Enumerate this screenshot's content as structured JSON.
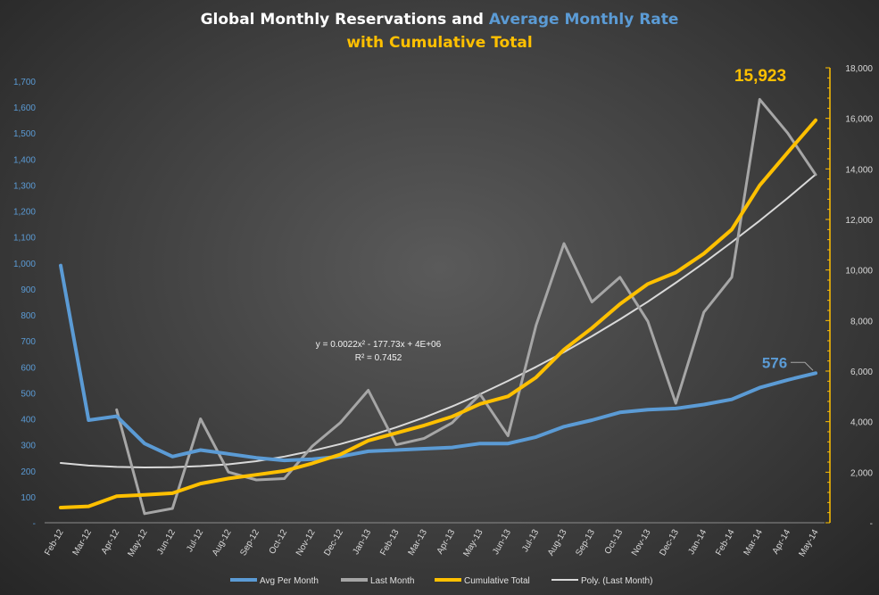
{
  "chart_data": {
    "type": "line",
    "title": {
      "part1": "Global Monthly Reservations and ",
      "part2": "Average Monthly Rate",
      "line2": "with Cumulative Total"
    },
    "categories": [
      "Feb-12",
      "Mar-12",
      "Apr-12",
      "May-12",
      "Jun-12",
      "Jul-12",
      "Aug-12",
      "Sep-12",
      "Oct-12",
      "Nov-12",
      "Dec-12",
      "Jan-13",
      "Feb-13",
      "Mar-13",
      "Apr-13",
      "May-13",
      "Jun-13",
      "Jul-13",
      "Aug-13",
      "Sep-13",
      "Oct-13",
      "Nov-13",
      "Dec-13",
      "Jan-14",
      "Feb-14",
      "Mar-14",
      "Apr-14",
      "May-14"
    ],
    "left_axis": {
      "min": 0,
      "max": 1700,
      "step": 100,
      "min_label": "-"
    },
    "right_axis": {
      "min": 0,
      "max": 18000,
      "step": 2000,
      "min_label": "-"
    },
    "series": [
      {
        "name": "Avg Per Month",
        "axis": "left",
        "color": "#5b9bd5",
        "width": 4,
        "values": [
          990,
          395,
          410,
          305,
          255,
          280,
          265,
          250,
          240,
          245,
          255,
          275,
          280,
          285,
          290,
          305,
          305,
          330,
          370,
          395,
          425,
          435,
          440,
          455,
          475,
          520,
          550,
          576
        ]
      },
      {
        "name": "Last Month",
        "axis": "left",
        "color": "#a6a6a6",
        "width": 3,
        "values": [
          null,
          null,
          435,
          35,
          55,
          400,
          195,
          165,
          170,
          295,
          385,
          510,
          300,
          325,
          385,
          495,
          335,
          760,
          1075,
          850,
          945,
          775,
          460,
          810,
          945,
          1630,
          1500,
          1340
        ]
      },
      {
        "name": "Cumulative Total",
        "axis": "right",
        "color": "#ffc000",
        "width": 4,
        "values": [
          600,
          650,
          1050,
          1100,
          1170,
          1550,
          1750,
          1900,
          2050,
          2350,
          2700,
          3250,
          3550,
          3850,
          4200,
          4700,
          5000,
          5750,
          6850,
          7700,
          8650,
          9450,
          9900,
          10650,
          11600,
          13350,
          14650,
          15923
        ]
      },
      {
        "name": "Poly. (Last Month)",
        "axis": "left",
        "color": "#d9d9d9",
        "width": 2,
        "values": [
          230,
          220,
          215,
          213,
          214,
          218,
          225,
          237,
          255,
          277,
          303,
          333,
          367,
          405,
          448,
          495,
          546,
          600,
          657,
          718,
          783,
          851,
          924,
          1000,
          1080,
          1163,
          1250,
          1341
        ]
      }
    ],
    "annotations": {
      "cumulative_end_label": "15,923",
      "avg_end_label": "576",
      "trend_equation": "y = 0.0022x² - 177.73x + 4E+06",
      "trend_r2": "R² = 0.7452"
    },
    "legend_position": "bottom",
    "grid": false
  }
}
